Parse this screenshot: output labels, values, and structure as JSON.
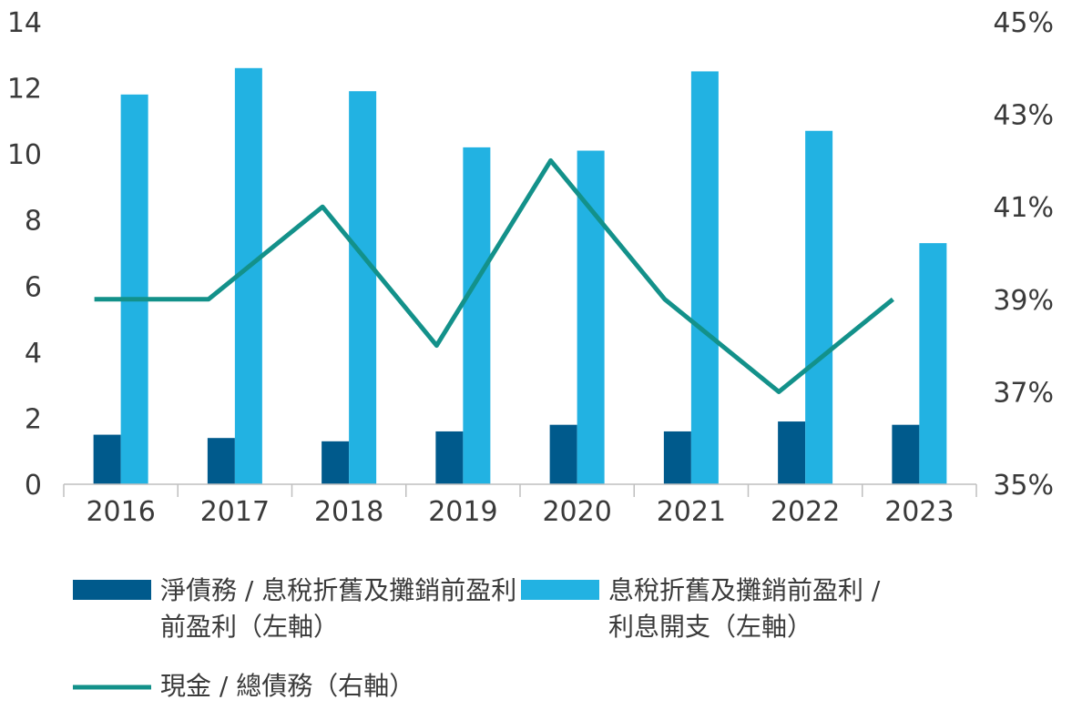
{
  "chart_data": {
    "type": "bar",
    "categories": [
      "2016",
      "2017",
      "2018",
      "2019",
      "2020",
      "2021",
      "2022",
      "2023"
    ],
    "series": [
      {
        "name": "淨債務 / 息稅折舊及攤銷前盈利（左軸）",
        "legend_lines": [
          "淨債務 / 息稅折舊及攤銷前盈利",
          "前盈利（左軸）"
        ],
        "type": "bar",
        "axis": "left",
        "color": "#005a8c",
        "values": [
          1.5,
          1.4,
          1.3,
          1.6,
          1.8,
          1.6,
          1.9,
          1.8
        ]
      },
      {
        "name": "息稅折舊及攤銷前盈利 / 利息開支（左軸）",
        "legend_lines": [
          "息稅折舊及攤銷前盈利 /",
          "利息開支（左軸）"
        ],
        "type": "bar",
        "axis": "left",
        "color": "#22b2e2",
        "values": [
          11.8,
          12.6,
          11.9,
          10.2,
          10.1,
          12.5,
          10.7,
          7.3
        ]
      },
      {
        "name": "現金 / 總債務（右軸）",
        "legend_lines": [
          "現金 / 總債務（右軸）"
        ],
        "type": "line",
        "axis": "right",
        "color": "#13918a",
        "values": [
          39,
          39,
          41,
          38,
          42,
          39,
          37,
          39
        ]
      }
    ],
    "left_axis": {
      "ticks": [
        "0",
        "2",
        "4",
        "6",
        "8",
        "10",
        "12",
        "14"
      ],
      "min": 0,
      "max": 14
    },
    "right_axis": {
      "ticks": [
        "35%",
        "37%",
        "39%",
        "41%",
        "43%",
        "45%"
      ],
      "min": 35,
      "max": 45
    },
    "grid": false,
    "legend_position": "bottom"
  }
}
